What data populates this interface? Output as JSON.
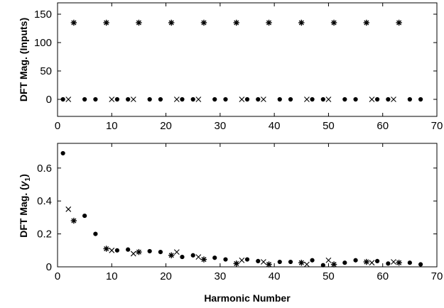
{
  "chart_data": [
    {
      "type": "scatter",
      "title": "",
      "xlabel": "",
      "ylabel": "DFT Mag. (Inputs)",
      "xlim": [
        0,
        70
      ],
      "ylim": [
        -30,
        170
      ],
      "xticks": [
        "0",
        "10",
        "20",
        "30",
        "40",
        "50",
        "60",
        "70"
      ],
      "yticks": [
        "0",
        "50",
        "100",
        "150"
      ],
      "xtick_values": [
        0,
        10,
        20,
        30,
        40,
        50,
        60,
        70
      ],
      "ytick_values": [
        0,
        50,
        100,
        150
      ],
      "grid": false,
      "series": [
        {
          "marker": "dot",
          "x": [
            1,
            5,
            7,
            11,
            13,
            17,
            19,
            23,
            25,
            29,
            31,
            35,
            37,
            41,
            43,
            47,
            49,
            53,
            55,
            59,
            61,
            65,
            67
          ],
          "y": [
            0,
            0,
            0,
            0,
            0,
            0,
            0,
            0,
            0,
            0,
            0,
            0,
            0,
            0,
            0,
            0,
            0,
            0,
            0,
            0,
            0,
            0,
            0
          ]
        },
        {
          "marker": "x",
          "x": [
            2,
            10,
            14,
            22,
            26,
            34,
            38,
            46,
            50,
            58,
            62
          ],
          "y": [
            0,
            0,
            0,
            0,
            0,
            0,
            0,
            0,
            0,
            0,
            0
          ]
        },
        {
          "marker": "star",
          "x": [
            3,
            9,
            15,
            21,
            27,
            33,
            39,
            45,
            51,
            57,
            63
          ],
          "y": [
            135,
            135,
            135,
            135,
            135,
            135,
            135,
            135,
            135,
            135,
            135
          ]
        }
      ]
    },
    {
      "type": "scatter",
      "title": "",
      "xlabel": "Harmonic Number",
      "ylabel_prefix": "DFT Mag. (",
      "ylabel_var": "y",
      "ylabel_sub": "1",
      "ylabel_suffix": ")",
      "xlim": [
        0,
        70
      ],
      "ylim": [
        0,
        0.75
      ],
      "xticks": [
        "0",
        "10",
        "20",
        "30",
        "40",
        "50",
        "60",
        "70"
      ],
      "yticks": [
        "0",
        "0.2",
        "0.4",
        "0.6"
      ],
      "xtick_values": [
        0,
        10,
        20,
        30,
        40,
        50,
        60,
        70
      ],
      "ytick_values": [
        0,
        0.2,
        0.4,
        0.6
      ],
      "grid": false,
      "series": [
        {
          "marker": "dot",
          "x": [
            1,
            5,
            7,
            11,
            13,
            17,
            19,
            23,
            25,
            29,
            31,
            35,
            37,
            41,
            43,
            47,
            49,
            53,
            55,
            59,
            61,
            65,
            67
          ],
          "y": [
            0.69,
            0.31,
            0.2,
            0.1,
            0.105,
            0.095,
            0.09,
            0.06,
            0.07,
            0.055,
            0.045,
            0.045,
            0.035,
            0.03,
            0.03,
            0.04,
            0.01,
            0.025,
            0.04,
            0.035,
            0.02,
            0.025,
            0.015
          ]
        },
        {
          "marker": "x",
          "x": [
            2,
            10,
            14,
            22,
            26,
            34,
            38,
            46,
            50,
            58,
            62
          ],
          "y": [
            0.35,
            0.1,
            0.08,
            0.09,
            0.06,
            0.04,
            0.03,
            0.015,
            0.04,
            0.025,
            0.03
          ]
        },
        {
          "marker": "star",
          "x": [
            3,
            9,
            15,
            21,
            27,
            33,
            39,
            45,
            51,
            57,
            63
          ],
          "y": [
            0.28,
            0.11,
            0.09,
            0.07,
            0.045,
            0.02,
            0.015,
            0.025,
            0.015,
            0.03,
            0.025
          ]
        }
      ]
    }
  ]
}
